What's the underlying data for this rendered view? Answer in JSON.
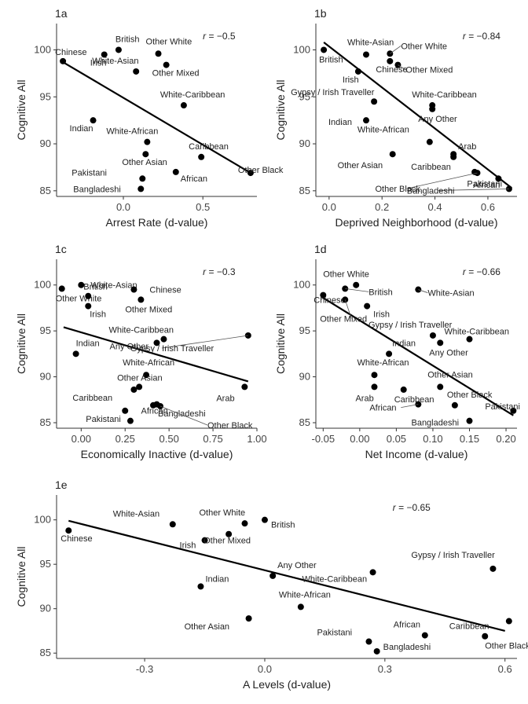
{
  "chart_data": [
    {
      "id": "1a",
      "type": "scatter",
      "panel_label": "1a",
      "title": "",
      "xlabel": "Arrest Rate (d-value)",
      "ylabel": "Cognitive All",
      "annotation": {
        "r_symbol": "r",
        "r_value": " = −0.5"
      },
      "xlim": [
        -0.42,
        0.84
      ],
      "ylim": [
        84.4,
        102.8
      ],
      "xticks": [
        {
          "v": 0,
          "label": "0.0"
        },
        {
          "v": 0.5,
          "label": "0.5"
        }
      ],
      "yticks": [
        {
          "v": 85,
          "label": "85"
        },
        {
          "v": 90,
          "label": "90"
        },
        {
          "v": 95,
          "label": "95"
        },
        {
          "v": 100,
          "label": "100"
        }
      ],
      "fit": [
        [
          -0.38,
          98.7
        ],
        [
          0.8,
          86.9
        ]
      ],
      "grid": false,
      "points": [
        {
          "label": "Chinese",
          "x": -0.38,
          "y": 98.8
        },
        {
          "label": "British",
          "x": -0.03,
          "y": 100.0
        },
        {
          "label": "White-Asian",
          "x": 0.08,
          "y": 97.7
        },
        {
          "label": "Irish",
          "x": -0.12,
          "y": 99.5
        },
        {
          "label": "Other White",
          "x": 0.22,
          "y": 99.6
        },
        {
          "label": "Other Mixed",
          "x": 0.27,
          "y": 98.4
        },
        {
          "label": "White-Caribbean",
          "x": 0.38,
          "y": 94.1
        },
        {
          "label": "Indian",
          "x": -0.19,
          "y": 92.5
        },
        {
          "label": "White-African",
          "x": 0.15,
          "y": 90.2
        },
        {
          "label": "Other Asian",
          "x": 0.14,
          "y": 88.9
        },
        {
          "label": "Caribbean",
          "x": 0.49,
          "y": 88.6
        },
        {
          "label": "Pakistani",
          "x": 0.12,
          "y": 86.3
        },
        {
          "label": "African",
          "x": 0.33,
          "y": 87.0
        },
        {
          "label": "Other Black",
          "x": 0.8,
          "y": 86.9
        },
        {
          "label": "Bangladeshi",
          "x": 0.11,
          "y": 85.2
        }
      ]
    },
    {
      "id": "1b",
      "type": "scatter",
      "panel_label": "1b",
      "title": "",
      "xlabel": "Deprived Neighborhood (d-value)",
      "ylabel": "Cognitive All",
      "annotation": {
        "r_symbol": "r",
        "r_value": " = −0.84"
      },
      "xlim": [
        -0.05,
        0.71
      ],
      "ylim": [
        84.4,
        102.8
      ],
      "xticks": [
        {
          "v": 0,
          "label": "0.0"
        },
        {
          "v": 0.2,
          "label": "0.2"
        },
        {
          "v": 0.4,
          "label": "0.4"
        },
        {
          "v": 0.6,
          "label": "0.6"
        }
      ],
      "yticks": [
        {
          "v": 85,
          "label": "85"
        },
        {
          "v": 90,
          "label": "90"
        },
        {
          "v": 95,
          "label": "95"
        },
        {
          "v": 100,
          "label": "100"
        }
      ],
      "fit": [
        [
          -0.02,
          100.8
        ],
        [
          0.69,
          85.3
        ]
      ],
      "grid": false,
      "points": [
        {
          "label": "British",
          "x": -0.02,
          "y": 100.0
        },
        {
          "label": "White-Asian",
          "x": 0.14,
          "y": 99.5
        },
        {
          "label": "Other White",
          "x": 0.23,
          "y": 99.6
        },
        {
          "label": "Chinese",
          "x": 0.23,
          "y": 98.8
        },
        {
          "label": "Other Mixed",
          "x": 0.26,
          "y": 98.4
        },
        {
          "label": "Irish",
          "x": 0.11,
          "y": 97.7
        },
        {
          "label": "Gypsy / Irish Traveller",
          "x": 0.17,
          "y": 94.5
        },
        {
          "label": "White-Caribbean",
          "x": 0.39,
          "y": 94.1
        },
        {
          "label": "Any Other",
          "x": 0.39,
          "y": 93.7
        },
        {
          "label": "Indian",
          "x": 0.14,
          "y": 92.5
        },
        {
          "label": "White-African",
          "x": 0.38,
          "y": 90.2
        },
        {
          "label": "Other Asian",
          "x": 0.24,
          "y": 88.9
        },
        {
          "label": "Caribbean",
          "x": 0.47,
          "y": 88.6
        },
        {
          "label": "Arab",
          "x": 0.47,
          "y": 88.9
        },
        {
          "label": "African",
          "x": 0.55,
          "y": 87.0
        },
        {
          "label": "Other Black",
          "x": 0.56,
          "y": 86.9
        },
        {
          "label": "Pakistani",
          "x": 0.64,
          "y": 86.3
        },
        {
          "label": "Bangladeshi",
          "x": 0.68,
          "y": 85.2
        }
      ]
    },
    {
      "id": "1c",
      "type": "scatter",
      "panel_label": "1c",
      "title": "",
      "xlabel": "Economically Inactive (d-value)",
      "ylabel": "Cognitive All",
      "annotation": {
        "r_symbol": "r",
        "r_value": " = −0.3"
      },
      "xlim": [
        -0.14,
        1.0
      ],
      "ylim": [
        84.4,
        102.8
      ],
      "xticks": [
        {
          "v": 0,
          "label": "0.00"
        },
        {
          "v": 0.25,
          "label": "0.25"
        },
        {
          "v": 0.5,
          "label": "0.50"
        },
        {
          "v": 0.75,
          "label": "0.75"
        },
        {
          "v": 1.0,
          "label": "1.00"
        }
      ],
      "yticks": [
        {
          "v": 85,
          "label": "85"
        },
        {
          "v": 90,
          "label": "90"
        },
        {
          "v": 95,
          "label": "95"
        },
        {
          "v": 100,
          "label": "100"
        }
      ],
      "fit": [
        [
          -0.1,
          95.4
        ],
        [
          0.95,
          89.5
        ]
      ],
      "grid": false,
      "points": [
        {
          "label": "Other White",
          "x": -0.11,
          "y": 99.6
        },
        {
          "label": "White-Asian",
          "x": 0.0,
          "y": 100.0
        },
        {
          "label": "British",
          "x": 0.04,
          "y": 98.8
        },
        {
          "label": "Irish",
          "x": 0.04,
          "y": 97.7
        },
        {
          "label": "Chinese",
          "x": 0.3,
          "y": 99.5
        },
        {
          "label": "Other Mixed",
          "x": 0.34,
          "y": 98.4
        },
        {
          "label": "White-Caribbean",
          "x": 0.47,
          "y": 94.1
        },
        {
          "label": "Any Other",
          "x": 0.43,
          "y": 93.7
        },
        {
          "label": "Gypsy / Irish Traveller",
          "x": 0.95,
          "y": 94.5
        },
        {
          "label": "Indian",
          "x": -0.03,
          "y": 92.5
        },
        {
          "label": "White-African",
          "x": 0.37,
          "y": 90.2
        },
        {
          "label": "Other Asian",
          "x": 0.33,
          "y": 88.9
        },
        {
          "label": "Caribbean",
          "x": 0.3,
          "y": 88.6
        },
        {
          "label": "African",
          "x": 0.43,
          "y": 87.0
        },
        {
          "label": "Bangladeshi",
          "x": 0.41,
          "y": 86.9
        },
        {
          "label": "Other Black",
          "x": 0.45,
          "y": 86.8
        },
        {
          "label": "Arab",
          "x": 0.93,
          "y": 88.9
        },
        {
          "label": "Pakistani",
          "x": 0.25,
          "y": 86.3
        },
        {
          "label": "",
          "x": 0.28,
          "y": 85.2
        }
      ]
    },
    {
      "id": "1d",
      "type": "scatter",
      "panel_label": "1d",
      "title": "",
      "xlabel": "Net Income (d-value)",
      "ylabel": "Cognitive All",
      "annotation": {
        "r_symbol": "r",
        "r_value": " = −0.66"
      },
      "xlim": [
        -0.06,
        0.215
      ],
      "ylim": [
        84.4,
        102.8
      ],
      "xticks": [
        {
          "v": -0.05,
          "label": "-0.05"
        },
        {
          "v": 0,
          "label": "0.00"
        },
        {
          "v": 0.05,
          "label": "0.05"
        },
        {
          "v": 0.1,
          "label": "0.10"
        },
        {
          "v": 0.15,
          "label": "0.15"
        },
        {
          "v": 0.2,
          "label": "0.20"
        }
      ],
      "yticks": [
        {
          "v": 85,
          "label": "85"
        },
        {
          "v": 90,
          "label": "90"
        },
        {
          "v": 95,
          "label": "95"
        },
        {
          "v": 100,
          "label": "100"
        }
      ],
      "fit": [
        [
          -0.05,
          98.6
        ],
        [
          0.21,
          85.8
        ]
      ],
      "grid": false,
      "points": [
        {
          "label": "Other White",
          "x": -0.005,
          "y": 100.0
        },
        {
          "label": "Chinese",
          "x": -0.05,
          "y": 98.9
        },
        {
          "label": "Other Mixed",
          "x": -0.02,
          "y": 98.4
        },
        {
          "label": "British",
          "x": -0.02,
          "y": 99.6
        },
        {
          "label": "White-Asian",
          "x": 0.08,
          "y": 99.5
        },
        {
          "label": "Irish",
          "x": 0.01,
          "y": 97.7
        },
        {
          "label": "Gypsy / Irish Traveller",
          "x": 0.1,
          "y": 94.5
        },
        {
          "label": "White-Caribbean",
          "x": 0.15,
          "y": 94.1
        },
        {
          "label": "Any Other",
          "x": 0.11,
          "y": 93.7
        },
        {
          "label": "Indian",
          "x": 0.04,
          "y": 92.5
        },
        {
          "label": "White-African",
          "x": 0.02,
          "y": 90.2
        },
        {
          "label": "Arab",
          "x": 0.02,
          "y": 88.9
        },
        {
          "label": "Caribbean",
          "x": 0.06,
          "y": 88.6
        },
        {
          "label": "Other Asian",
          "x": 0.11,
          "y": 88.9
        },
        {
          "label": "African",
          "x": 0.08,
          "y": 87.0
        },
        {
          "label": "Other Black",
          "x": 0.13,
          "y": 86.9
        },
        {
          "label": "Pakistani",
          "x": 0.21,
          "y": 86.3
        },
        {
          "label": "Bangladeshi",
          "x": 0.15,
          "y": 85.2
        }
      ]
    },
    {
      "id": "1e",
      "type": "scatter",
      "panel_label": "1e",
      "title": "",
      "xlabel": "A Levels (d-value)",
      "ylabel": "Cognitive All",
      "annotation": {
        "r_symbol": "r",
        "r_value": " = −0.65"
      },
      "xlim": [
        -0.52,
        0.63
      ],
      "ylim": [
        84.4,
        102.8
      ],
      "xticks": [
        {
          "v": -0.3,
          "label": "-0.3"
        },
        {
          "v": 0,
          "label": "0.0"
        },
        {
          "v": 0.3,
          "label": "0.3"
        },
        {
          "v": 0.6,
          "label": "0.6"
        }
      ],
      "yticks": [
        {
          "v": 85,
          "label": "85"
        },
        {
          "v": 90,
          "label": "90"
        },
        {
          "v": 95,
          "label": "95"
        },
        {
          "v": 100,
          "label": "100"
        }
      ],
      "fit": [
        [
          -0.49,
          99.9
        ],
        [
          0.6,
          87.5
        ]
      ],
      "grid": false,
      "points": [
        {
          "label": "Chinese",
          "x": -0.49,
          "y": 98.8
        },
        {
          "label": "White-Asian",
          "x": -0.23,
          "y": 99.5
        },
        {
          "label": "Other White",
          "x": -0.05,
          "y": 99.6
        },
        {
          "label": "British",
          "x": 0.0,
          "y": 100.0
        },
        {
          "label": "Irish",
          "x": -0.15,
          "y": 97.7
        },
        {
          "label": "Other Mixed",
          "x": -0.09,
          "y": 98.4
        },
        {
          "label": "Any Other",
          "x": 0.02,
          "y": 93.7
        },
        {
          "label": "White-Caribbean",
          "x": 0.27,
          "y": 94.1
        },
        {
          "label": "Gypsy / Irish Traveller",
          "x": 0.57,
          "y": 94.5
        },
        {
          "label": "Indian",
          "x": -0.16,
          "y": 92.5
        },
        {
          "label": "White-African",
          "x": 0.09,
          "y": 90.2
        },
        {
          "label": "Other Asian",
          "x": -0.04,
          "y": 88.9
        },
        {
          "label": "Pakistani",
          "x": 0.26,
          "y": 86.3
        },
        {
          "label": "African",
          "x": 0.4,
          "y": 87.0
        },
        {
          "label": "Bangladeshi",
          "x": 0.28,
          "y": 85.2
        },
        {
          "label": "Caribbean",
          "x": 0.61,
          "y": 88.6
        },
        {
          "label": "Other Black",
          "x": 0.55,
          "y": 86.9
        }
      ]
    }
  ]
}
